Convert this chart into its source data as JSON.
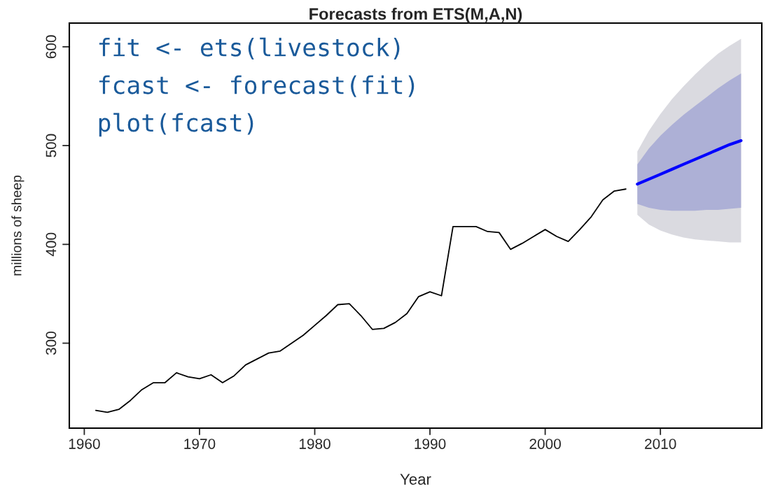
{
  "chart_data": {
    "type": "line",
    "title": "Forecasts from ETS(M,A,N)",
    "xlabel": "Year",
    "ylabel": "millions of sheep",
    "annotations": [
      "fit <- ets(livestock)",
      "fcast <- forecast(fit)",
      "plot(fcast)"
    ],
    "xlim": [
      1958.7,
      2018.8
    ],
    "xticks": [
      1960,
      1970,
      1980,
      1990,
      2000,
      2010
    ],
    "ylim": [
      214,
      624
    ],
    "yticks": [
      300,
      400,
      500,
      600
    ],
    "grid": false,
    "legend": false,
    "series": [
      {
        "color": "#000000",
        "x": [
          1961,
          1962,
          1963,
          1964,
          1965,
          1966,
          1967,
          1968,
          1969,
          1970,
          1971,
          1972,
          1973,
          1974,
          1975,
          1976,
          1977,
          1978,
          1979,
          1980,
          1981,
          1982,
          1983,
          1984,
          1985,
          1986,
          1987,
          1988,
          1989,
          1990,
          1991,
          1992,
          1993,
          1994,
          1995,
          1996,
          1997,
          1998,
          1999,
          2000,
          2001,
          2002,
          2003,
          2004,
          2005,
          2006,
          2007
        ],
        "values": [
          232,
          230,
          233,
          242,
          253,
          260,
          260,
          270,
          266,
          264,
          268,
          260,
          267,
          278,
          284,
          290,
          292,
          300,
          308,
          318,
          328,
          339,
          340,
          328,
          314,
          315,
          321,
          330,
          347,
          352,
          348,
          418,
          418,
          418,
          413,
          412,
          395,
          401,
          408,
          415,
          408,
          403,
          415,
          428,
          445,
          454,
          456
        ]
      },
      {
        "color": "#dadae0",
        "x": [
          2008,
          2009,
          2010,
          2011,
          2012,
          2013,
          2014,
          2015,
          2016,
          2017
        ],
        "values": [
          null,
          null,
          null,
          null,
          null,
          null,
          null,
          null,
          null,
          null
        ],
        "lower": [
          430,
          420,
          414,
          410,
          407,
          405,
          404,
          403,
          402,
          402
        ],
        "upper": [
          494,
          515,
          532,
          547,
          560,
          572,
          583,
          593,
          601,
          608
        ]
      },
      {
        "color": "#0000ff",
        "x": [
          2008,
          2009,
          2010,
          2011,
          2012,
          2013,
          2014,
          2015,
          2016,
          2017
        ],
        "values": [
          461,
          466,
          471,
          476,
          481,
          486,
          491,
          496,
          501,
          505
        ],
        "lower": [
          441,
          437,
          435,
          434,
          434,
          434,
          435,
          435,
          436,
          437
        ],
        "upper": [
          481,
          497,
          510,
          521,
          531,
          540,
          549,
          558,
          566,
          573
        ]
      }
    ]
  }
}
